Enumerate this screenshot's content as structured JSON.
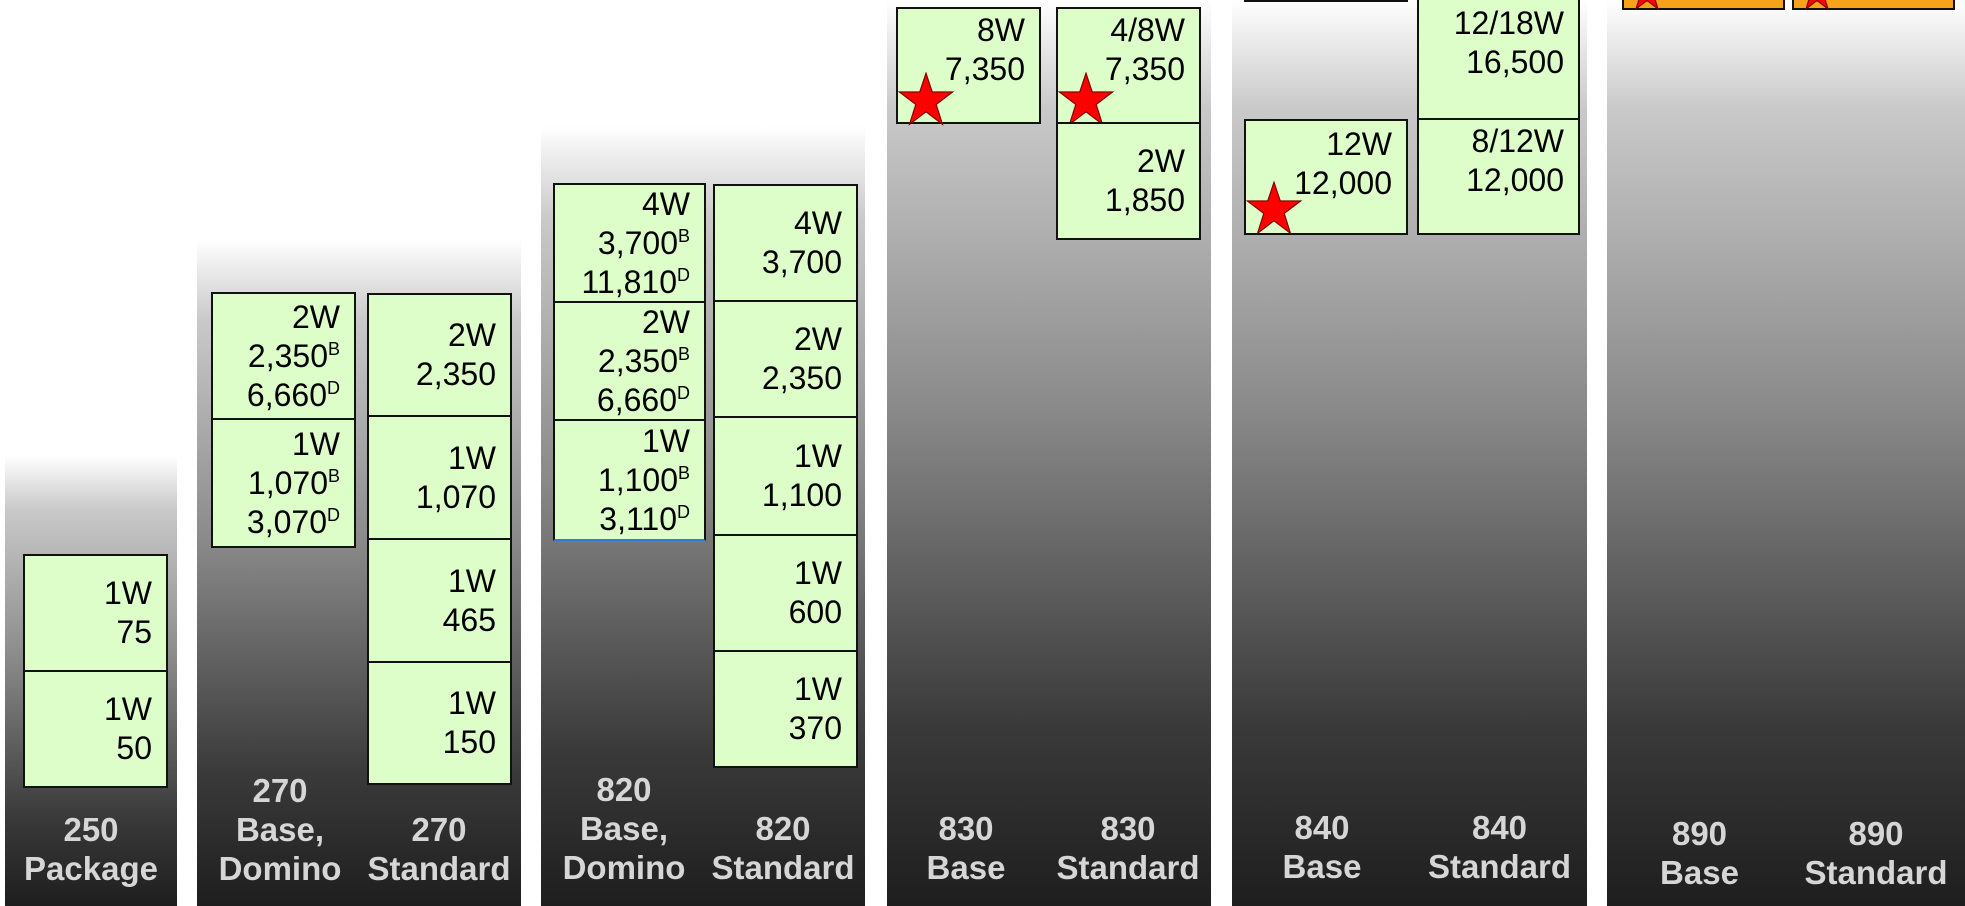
{
  "columns": {
    "c250": {
      "title": [
        "250",
        "Package"
      ]
    },
    "c270b": {
      "title": [
        "270",
        "Base,",
        "Domino"
      ]
    },
    "c270s": {
      "title": [
        "270",
        "Standard"
      ]
    },
    "c820b": {
      "title": [
        "820",
        "Base,",
        "Domino"
      ]
    },
    "c820s": {
      "title": [
        "820",
        "Standard"
      ]
    },
    "c830b": {
      "title": [
        "830",
        "Base"
      ]
    },
    "c830s": {
      "title": [
        "830",
        "Standard"
      ]
    },
    "c840b": {
      "title": [
        "840",
        "Base"
      ]
    },
    "c840s": {
      "title": [
        "840",
        "Standard"
      ]
    },
    "c890b": {
      "title": [
        "890",
        "Base"
      ]
    },
    "c890s": {
      "title": [
        "890",
        "Standard"
      ]
    }
  },
  "boxes": {
    "b250_1": {
      "watts": "1W",
      "price": "75"
    },
    "b250_2": {
      "watts": "1W",
      "price": "50"
    },
    "b270b_1": {
      "watts": "2W",
      "price_b": "2,350",
      "price_d": "6,660"
    },
    "b270b_2": {
      "watts": "1W",
      "price_b": "1,070",
      "price_d": "3,070"
    },
    "b270s_1": {
      "watts": "2W",
      "price": "2,350"
    },
    "b270s_2": {
      "watts": "1W",
      "price": "1,070"
    },
    "b270s_3": {
      "watts": "1W",
      "price": "465"
    },
    "b270s_4": {
      "watts": "1W",
      "price": "150"
    },
    "b820b_1": {
      "watts": "4W",
      "price_b": "3,700",
      "price_d": "11,810"
    },
    "b820b_2": {
      "watts": "2W",
      "price_b": "2,350",
      "price_d": "6,660"
    },
    "b820b_3": {
      "watts": "1W",
      "price_b": "1,100",
      "price_d": "3,110"
    },
    "b820s_1": {
      "watts": "4W",
      "price": "3,700"
    },
    "b820s_2": {
      "watts": "2W",
      "price": "2,350"
    },
    "b820s_3": {
      "watts": "1W",
      "price": "1,100"
    },
    "b820s_4": {
      "watts": "1W",
      "price": "600"
    },
    "b820s_5": {
      "watts": "1W",
      "price": "370"
    },
    "b830b_1": {
      "watts": "8W",
      "price": "7,350"
    },
    "b830s_1": {
      "watts": "4/8W",
      "price": "7,350"
    },
    "b830s_2": {
      "watts": "2W",
      "price": "1,850"
    },
    "b840b_1": {
      "watts": "12W",
      "price": "12,000"
    },
    "b840s_1": {
      "watts": "12/18W",
      "price": "16,500"
    },
    "b840s_2": {
      "watts": "8/12W",
      "price": "12,000"
    }
  },
  "superscripts": {
    "base": "B",
    "domino": "D"
  },
  "colors": {
    "box_fill": "#ddfdc9",
    "box_top_orange": "#f7a21b",
    "star": "#ff0000",
    "label": "#d6d6d6"
  }
}
